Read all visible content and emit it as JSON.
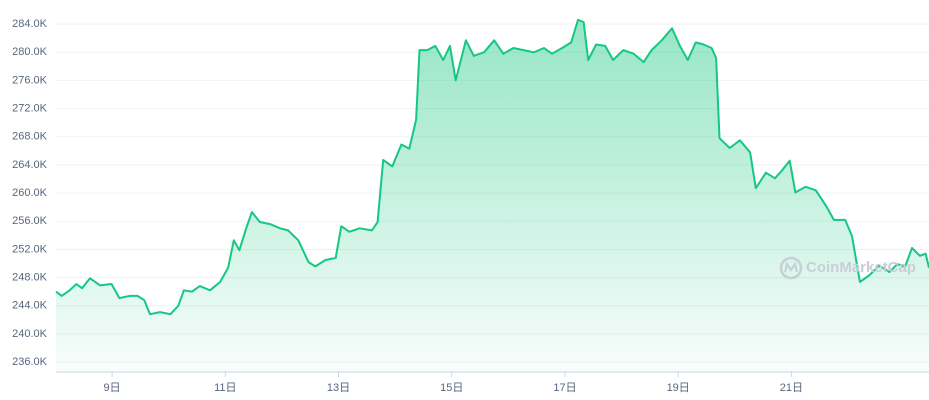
{
  "chart_data": {
    "type": "area",
    "x": [
      8.01,
      8.11,
      8.25,
      8.37,
      8.47,
      8.61,
      8.79,
      8.99,
      9.13,
      9.31,
      9.45,
      9.57,
      9.67,
      9.85,
      10.03,
      10.17,
      10.27,
      10.41,
      10.55,
      10.73,
      10.91,
      11.05,
      11.15,
      11.25,
      11.37,
      11.47,
      11.61,
      11.79,
      11.97,
      12.11,
      12.29,
      12.47,
      12.59,
      12.77,
      12.95,
      13.05,
      13.19,
      13.37,
      13.59,
      13.69,
      13.79,
      13.95,
      14.11,
      14.25,
      14.37,
      14.43,
      14.57,
      14.71,
      14.85,
      14.97,
      15.07,
      15.25,
      15.39,
      15.57,
      15.75,
      15.91,
      16.09,
      16.27,
      16.45,
      16.63,
      16.77,
      16.95,
      17.11,
      17.23,
      17.33,
      17.41,
      17.55,
      17.71,
      17.85,
      18.03,
      18.21,
      18.39,
      18.53,
      18.71,
      18.89,
      19.03,
      19.17,
      19.31,
      19.45,
      19.59,
      19.67,
      19.73,
      19.91,
      20.09,
      20.27,
      20.37,
      20.55,
      20.71,
      20.83,
      20.97,
      21.07,
      21.25,
      21.43,
      21.61,
      21.75,
      21.95,
      22.07,
      22.21,
      22.37,
      22.55,
      22.73,
      22.87,
      23.01,
      23.13,
      23.27,
      23.37,
      23.43
    ],
    "series": [
      {
        "color": "#16c784",
        "values": [
          246000,
          245400,
          246200,
          247100,
          246500,
          247900,
          246900,
          247100,
          245100,
          245400,
          245400,
          244800,
          242800,
          243100,
          242800,
          244000,
          246200,
          246000,
          246800,
          246200,
          247400,
          249400,
          253300,
          251900,
          255000,
          257300,
          255900,
          255600,
          255000,
          254700,
          253300,
          250200,
          249600,
          250500,
          250800,
          255300,
          254500,
          255000,
          254700,
          255900,
          264700,
          263800,
          266900,
          266300,
          270400,
          280300,
          280300,
          280900,
          278900,
          280900,
          276000,
          281700,
          279500,
          280000,
          281700,
          279800,
          280600,
          280300,
          280000,
          280600,
          279800,
          280600,
          281400,
          284600,
          284300,
          278900,
          281100,
          280900,
          278900,
          280300,
          279800,
          278600,
          280300,
          281700,
          283400,
          280900,
          278900,
          281400,
          281100,
          280600,
          279200,
          267800,
          266400,
          267500,
          265800,
          260700,
          262900,
          262100,
          263200,
          264600,
          260100,
          260900,
          260400,
          258200,
          256200,
          256200,
          253900,
          247400,
          248300,
          249700,
          248800,
          249900,
          249600,
          252200,
          251100,
          251400,
          249400
        ]
      }
    ],
    "xlim": [
      8.01,
      23.43
    ],
    "xticks": [
      {
        "value": 9,
        "label": "9日"
      },
      {
        "value": 11,
        "label": "11日"
      },
      {
        "value": 13,
        "label": "13日"
      },
      {
        "value": 15,
        "label": "15日"
      },
      {
        "value": 17,
        "label": "17日"
      },
      {
        "value": 19,
        "label": "19日"
      },
      {
        "value": 21,
        "label": "21日"
      }
    ],
    "ylim": [
      234600,
      286000
    ],
    "yticks": [
      {
        "value": 236000,
        "label": "236.0K"
      },
      {
        "value": 240000,
        "label": "240.0K"
      },
      {
        "value": 244000,
        "label": "244.0K"
      },
      {
        "value": 248000,
        "label": "248.0K"
      },
      {
        "value": 252000,
        "label": "252.0K"
      },
      {
        "value": 256000,
        "label": "256.0K"
      },
      {
        "value": 260000,
        "label": "260.0K"
      },
      {
        "value": 264000,
        "label": "264.0K"
      },
      {
        "value": 268000,
        "label": "268.0K"
      },
      {
        "value": 272000,
        "label": "272.0K"
      },
      {
        "value": 276000,
        "label": "276.0K"
      },
      {
        "value": 280000,
        "label": "280.0K"
      },
      {
        "value": 284000,
        "label": "284.0K"
      }
    ],
    "grid": true,
    "watermark": "CoinMarketCap"
  }
}
